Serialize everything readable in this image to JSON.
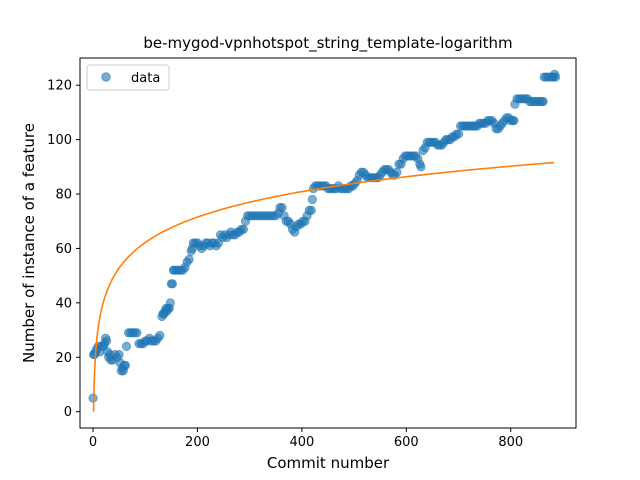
{
  "chart_data": {
    "type": "scatter",
    "title": "be-mygod-vpnhotspot_string_template-logarithm",
    "xlabel": "Commit number",
    "ylabel": "Number of instance of a feature",
    "xlim": [
      -25,
      925
    ],
    "ylim": [
      -6,
      130
    ],
    "xticks": [
      0,
      200,
      400,
      600,
      800
    ],
    "yticks": [
      0,
      20,
      40,
      60,
      80,
      100,
      120
    ],
    "grid": false,
    "legend": {
      "placement": "top-left",
      "entries": [
        "data"
      ]
    },
    "colors": {
      "data": "#1f77b4",
      "fit": "#ff7f0e"
    },
    "series": [
      {
        "name": "data",
        "kind": "scatter",
        "points": [
          [
            0,
            5
          ],
          [
            1,
            21
          ],
          [
            3,
            21
          ],
          [
            5,
            22
          ],
          [
            7,
            23
          ],
          [
            10,
            24
          ],
          [
            13,
            22
          ],
          [
            16,
            24
          ],
          [
            20,
            24
          ],
          [
            22,
            25
          ],
          [
            24,
            27
          ],
          [
            26,
            26
          ],
          [
            28,
            22
          ],
          [
            30,
            20
          ],
          [
            32,
            21
          ],
          [
            34,
            19
          ],
          [
            38,
            19
          ],
          [
            42,
            21
          ],
          [
            46,
            20
          ],
          [
            50,
            21
          ],
          [
            52,
            18
          ],
          [
            54,
            15
          ],
          [
            56,
            16
          ],
          [
            58,
            15
          ],
          [
            60,
            17
          ],
          [
            62,
            17
          ],
          [
            64,
            24
          ],
          [
            68,
            29
          ],
          [
            72,
            29
          ],
          [
            76,
            29
          ],
          [
            80,
            29
          ],
          [
            84,
            29
          ],
          [
            88,
            25
          ],
          [
            92,
            25
          ],
          [
            96,
            25
          ],
          [
            100,
            26
          ],
          [
            104,
            26
          ],
          [
            108,
            27
          ],
          [
            112,
            26
          ],
          [
            116,
            26
          ],
          [
            120,
            26
          ],
          [
            124,
            27
          ],
          [
            128,
            28
          ],
          [
            132,
            35
          ],
          [
            134,
            36
          ],
          [
            136,
            36
          ],
          [
            138,
            37
          ],
          [
            140,
            38
          ],
          [
            142,
            37
          ],
          [
            144,
            38
          ],
          [
            146,
            38
          ],
          [
            148,
            40
          ],
          [
            150,
            47
          ],
          [
            152,
            47
          ],
          [
            154,
            52
          ],
          [
            156,
            52
          ],
          [
            160,
            52
          ],
          [
            164,
            52
          ],
          [
            168,
            52
          ],
          [
            172,
            52
          ],
          [
            176,
            53
          ],
          [
            180,
            55
          ],
          [
            184,
            56
          ],
          [
            188,
            59
          ],
          [
            190,
            60
          ],
          [
            192,
            62
          ],
          [
            196,
            62
          ],
          [
            200,
            62
          ],
          [
            204,
            61
          ],
          [
            208,
            60
          ],
          [
            212,
            61
          ],
          [
            216,
            62
          ],
          [
            220,
            62
          ],
          [
            224,
            61
          ],
          [
            228,
            62
          ],
          [
            232,
            62
          ],
          [
            236,
            61
          ],
          [
            240,
            62
          ],
          [
            244,
            65
          ],
          [
            248,
            64
          ],
          [
            252,
            65
          ],
          [
            256,
            64
          ],
          [
            260,
            65
          ],
          [
            264,
            66
          ],
          [
            268,
            65
          ],
          [
            272,
            65
          ],
          [
            276,
            66
          ],
          [
            280,
            66
          ],
          [
            284,
            67
          ],
          [
            288,
            67
          ],
          [
            292,
            70
          ],
          [
            296,
            72
          ],
          [
            300,
            72
          ],
          [
            305,
            72
          ],
          [
            310,
            72
          ],
          [
            315,
            72
          ],
          [
            320,
            72
          ],
          [
            325,
            72
          ],
          [
            330,
            72
          ],
          [
            335,
            72
          ],
          [
            340,
            72
          ],
          [
            345,
            72
          ],
          [
            350,
            72
          ],
          [
            355,
            73
          ],
          [
            358,
            75
          ],
          [
            362,
            75
          ],
          [
            366,
            72
          ],
          [
            370,
            70
          ],
          [
            374,
            70
          ],
          [
            378,
            69
          ],
          [
            382,
            67
          ],
          [
            386,
            66
          ],
          [
            390,
            68
          ],
          [
            394,
            69
          ],
          [
            398,
            69
          ],
          [
            402,
            70
          ],
          [
            406,
            70
          ],
          [
            410,
            72
          ],
          [
            414,
            74
          ],
          [
            418,
            74
          ],
          [
            420,
            78
          ],
          [
            422,
            82
          ],
          [
            426,
            83
          ],
          [
            430,
            83
          ],
          [
            434,
            83
          ],
          [
            438,
            83
          ],
          [
            442,
            83
          ],
          [
            446,
            83
          ],
          [
            450,
            82
          ],
          [
            454,
            82
          ],
          [
            458,
            82
          ],
          [
            462,
            82
          ],
          [
            466,
            82
          ],
          [
            470,
            83
          ],
          [
            474,
            82
          ],
          [
            478,
            82
          ],
          [
            482,
            82
          ],
          [
            486,
            82
          ],
          [
            490,
            82
          ],
          [
            494,
            83
          ],
          [
            498,
            83
          ],
          [
            502,
            84
          ],
          [
            506,
            85
          ],
          [
            510,
            87
          ],
          [
            514,
            88
          ],
          [
            518,
            88
          ],
          [
            522,
            87
          ],
          [
            526,
            86
          ],
          [
            530,
            86
          ],
          [
            534,
            86
          ],
          [
            538,
            86
          ],
          [
            542,
            86
          ],
          [
            546,
            86
          ],
          [
            550,
            87
          ],
          [
            554,
            88
          ],
          [
            558,
            89
          ],
          [
            562,
            89
          ],
          [
            566,
            89
          ],
          [
            570,
            88
          ],
          [
            574,
            87
          ],
          [
            578,
            87
          ],
          [
            582,
            88
          ],
          [
            586,
            91
          ],
          [
            590,
            91
          ],
          [
            594,
            93
          ],
          [
            598,
            94
          ],
          [
            602,
            94
          ],
          [
            606,
            94
          ],
          [
            610,
            94
          ],
          [
            614,
            94
          ],
          [
            618,
            94
          ],
          [
            622,
            93
          ],
          [
            626,
            91
          ],
          [
            628,
            90
          ],
          [
            632,
            96
          ],
          [
            636,
            97
          ],
          [
            640,
            99
          ],
          [
            644,
            99
          ],
          [
            648,
            99
          ],
          [
            652,
            99
          ],
          [
            656,
            99
          ],
          [
            660,
            98
          ],
          [
            664,
            98
          ],
          [
            668,
            98
          ],
          [
            672,
            99
          ],
          [
            676,
            100
          ],
          [
            680,
            100
          ],
          [
            684,
            100
          ],
          [
            688,
            101
          ],
          [
            692,
            101
          ],
          [
            696,
            102
          ],
          [
            700,
            102
          ],
          [
            704,
            105
          ],
          [
            708,
            105
          ],
          [
            712,
            105
          ],
          [
            716,
            105
          ],
          [
            720,
            105
          ],
          [
            724,
            105
          ],
          [
            728,
            105
          ],
          [
            732,
            105
          ],
          [
            736,
            105
          ],
          [
            740,
            106
          ],
          [
            744,
            106
          ],
          [
            748,
            106
          ],
          [
            752,
            106
          ],
          [
            756,
            107
          ],
          [
            760,
            107
          ],
          [
            764,
            107
          ],
          [
            768,
            106
          ],
          [
            772,
            104
          ],
          [
            776,
            104
          ],
          [
            780,
            105
          ],
          [
            784,
            106
          ],
          [
            788,
            107
          ],
          [
            792,
            108
          ],
          [
            796,
            108
          ],
          [
            800,
            107
          ],
          [
            804,
            107
          ],
          [
            806,
            107
          ],
          [
            808,
            113
          ],
          [
            812,
            115
          ],
          [
            816,
            115
          ],
          [
            820,
            115
          ],
          [
            824,
            115
          ],
          [
            828,
            115
          ],
          [
            832,
            115
          ],
          [
            836,
            114
          ],
          [
            840,
            114
          ],
          [
            844,
            114
          ],
          [
            848,
            114
          ],
          [
            852,
            114
          ],
          [
            856,
            114
          ],
          [
            860,
            114
          ],
          [
            862,
            114
          ],
          [
            864,
            123
          ],
          [
            868,
            123
          ],
          [
            872,
            123
          ],
          [
            876,
            123
          ],
          [
            880,
            123
          ],
          [
            882,
            123
          ],
          [
            884,
            124
          ],
          [
            886,
            123
          ]
        ]
      },
      {
        "kind": "line",
        "model": "logarithmic fit",
        "params": {
          "a": 13.5,
          "b": 0.0
        },
        "x_range": [
          1,
          883
        ]
      }
    ]
  }
}
